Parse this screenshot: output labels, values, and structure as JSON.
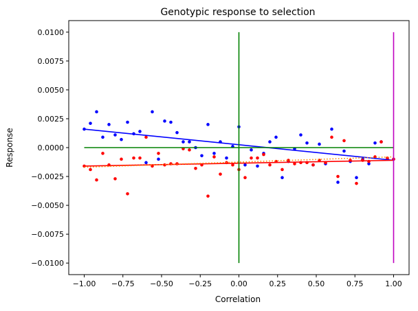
{
  "chart_data": {
    "type": "scatter",
    "title": "Genotypic response to selection",
    "xlabel": "Correlation",
    "ylabel": "Response",
    "xlim": [
      -1.1,
      1.1
    ],
    "ylim": [
      -0.011,
      0.011
    ],
    "grid": false,
    "x_ticks": [
      -1.0,
      -0.75,
      -0.5,
      -0.25,
      0.0,
      0.25,
      0.5,
      0.75,
      1.0
    ],
    "x_tick_labels": [
      "−1.00",
      "−0.75",
      "−0.50",
      "−0.25",
      "0.00",
      "0.25",
      "0.50",
      "0.75",
      "1.00"
    ],
    "y_ticks": [
      -0.01,
      -0.0075,
      -0.005,
      -0.0025,
      0.0,
      0.0025,
      0.005,
      0.0075,
      0.01
    ],
    "y_tick_labels": [
      "−0.0100",
      "−0.0075",
      "−0.0050",
      "−0.0025",
      "0.0000",
      "0.0025",
      "0.0050",
      "0.0075",
      "0.0100"
    ],
    "colors": {
      "blue": "#0000ff",
      "red": "#ff0000",
      "green": "#008000",
      "magenta": "#bf00bf",
      "orange": "#ff8c00"
    },
    "series": [
      {
        "color": "blue",
        "marker": "point",
        "points": [
          [
            -1.0,
            0.0016
          ],
          [
            -0.96,
            0.0021
          ],
          [
            -0.92,
            0.0031
          ],
          [
            -0.88,
            0.0009
          ],
          [
            -0.84,
            0.002
          ],
          [
            -0.8,
            0.0011
          ],
          [
            -0.76,
            0.0007
          ],
          [
            -0.72,
            0.0022
          ],
          [
            -0.68,
            0.0012
          ],
          [
            -0.64,
            0.0014
          ],
          [
            -0.6,
            -0.0013
          ],
          [
            -0.56,
            0.0031
          ],
          [
            -0.52,
            -0.001
          ],
          [
            -0.48,
            0.0023
          ],
          [
            -0.44,
            0.0022
          ],
          [
            -0.4,
            0.0013
          ],
          [
            -0.36,
            0.0005
          ],
          [
            -0.32,
            0.0005
          ],
          [
            -0.28,
            0.0
          ],
          [
            -0.24,
            -0.0007
          ],
          [
            -0.2,
            0.002
          ],
          [
            -0.16,
            -0.0005
          ],
          [
            -0.12,
            0.0005
          ],
          [
            -0.08,
            -0.0009
          ],
          [
            -0.04,
            0.0001
          ],
          [
            0.0,
            0.0018
          ],
          [
            0.04,
            -0.0015
          ],
          [
            0.08,
            -0.0002
          ],
          [
            0.12,
            -0.0016
          ],
          [
            0.16,
            -0.0005
          ],
          [
            0.2,
            0.0005
          ],
          [
            0.24,
            0.0009
          ],
          [
            0.28,
            -0.0026
          ],
          [
            0.32,
            -0.0012
          ],
          [
            0.36,
            -0.0001
          ],
          [
            0.4,
            0.0011
          ],
          [
            0.44,
            0.0004
          ],
          [
            0.48,
            -0.0015
          ],
          [
            0.52,
            0.0003
          ],
          [
            0.56,
            -0.0014
          ],
          [
            0.6,
            0.0016
          ],
          [
            0.64,
            -0.003
          ],
          [
            0.68,
            -0.0003
          ],
          [
            0.72,
            -0.0012
          ],
          [
            0.76,
            -0.0026
          ],
          [
            0.8,
            -0.001
          ],
          [
            0.84,
            -0.0014
          ],
          [
            0.88,
            0.0004
          ],
          [
            0.92,
            0.0005
          ],
          [
            0.96,
            -0.001
          ],
          [
            1.0,
            -0.001
          ]
        ]
      },
      {
        "color": "red",
        "marker": "point",
        "points": [
          [
            -1.0,
            -0.0016
          ],
          [
            -0.96,
            -0.0019
          ],
          [
            -0.92,
            -0.0028
          ],
          [
            -0.88,
            -0.0005
          ],
          [
            -0.84,
            -0.0015
          ],
          [
            -0.8,
            -0.0027
          ],
          [
            -0.76,
            -0.001
          ],
          [
            -0.72,
            -0.004
          ],
          [
            -0.68,
            -0.0009
          ],
          [
            -0.64,
            -0.0009
          ],
          [
            -0.6,
            0.0009
          ],
          [
            -0.56,
            -0.0016
          ],
          [
            -0.52,
            -0.0005
          ],
          [
            -0.48,
            -0.0015
          ],
          [
            -0.44,
            -0.0014
          ],
          [
            -0.4,
            -0.0014
          ],
          [
            -0.36,
            -0.0001
          ],
          [
            -0.32,
            -0.0002
          ],
          [
            -0.28,
            -0.0018
          ],
          [
            -0.24,
            -0.0015
          ],
          [
            -0.2,
            -0.0042
          ],
          [
            -0.16,
            -0.0008
          ],
          [
            -0.12,
            -0.0023
          ],
          [
            -0.08,
            -0.0013
          ],
          [
            -0.04,
            -0.0015
          ],
          [
            0.0,
            -0.0019
          ],
          [
            0.04,
            -0.0026
          ],
          [
            0.08,
            -0.0009
          ],
          [
            0.12,
            -0.0009
          ],
          [
            0.16,
            -0.0006
          ],
          [
            0.2,
            -0.0015
          ],
          [
            0.24,
            -0.0012
          ],
          [
            0.28,
            -0.0019
          ],
          [
            0.32,
            -0.0011
          ],
          [
            0.36,
            -0.0014
          ],
          [
            0.4,
            -0.0013
          ],
          [
            0.44,
            -0.0013
          ],
          [
            0.48,
            -0.0015
          ],
          [
            0.52,
            -0.0011
          ],
          [
            0.56,
            -0.0013
          ],
          [
            0.6,
            0.0009
          ],
          [
            0.64,
            -0.0025
          ],
          [
            0.68,
            0.0006
          ],
          [
            0.72,
            -0.0011
          ],
          [
            0.76,
            -0.0031
          ],
          [
            0.8,
            -0.0011
          ],
          [
            0.84,
            -0.0012
          ],
          [
            0.88,
            -0.0008
          ],
          [
            0.92,
            0.0005
          ],
          [
            0.96,
            -0.0009
          ],
          [
            1.0,
            -0.001
          ]
        ]
      }
    ],
    "lines": [
      {
        "color": "blue",
        "style": "solid",
        "points": [
          [
            -1.0,
            0.0016
          ],
          [
            1.0,
            -0.0011
          ]
        ]
      },
      {
        "color": "red",
        "style": "solid",
        "points": [
          [
            -1.0,
            -0.0016
          ],
          [
            1.0,
            -0.0011
          ]
        ]
      },
      {
        "color": "orange",
        "style": "dotted",
        "points": [
          [
            -1.0,
            -0.0017
          ],
          [
            1.0,
            -0.0008
          ]
        ]
      },
      {
        "color": "green",
        "style": "solid",
        "points": [
          [
            -1.0,
            0.0
          ],
          [
            1.0,
            0.0
          ]
        ]
      },
      {
        "color": "green",
        "style": "solid",
        "points": [
          [
            0.0,
            -0.01
          ],
          [
            0.0,
            0.01
          ]
        ]
      },
      {
        "color": "magenta",
        "style": "solid",
        "points": [
          [
            1.0,
            -0.01
          ],
          [
            1.0,
            0.01
          ]
        ]
      }
    ]
  }
}
